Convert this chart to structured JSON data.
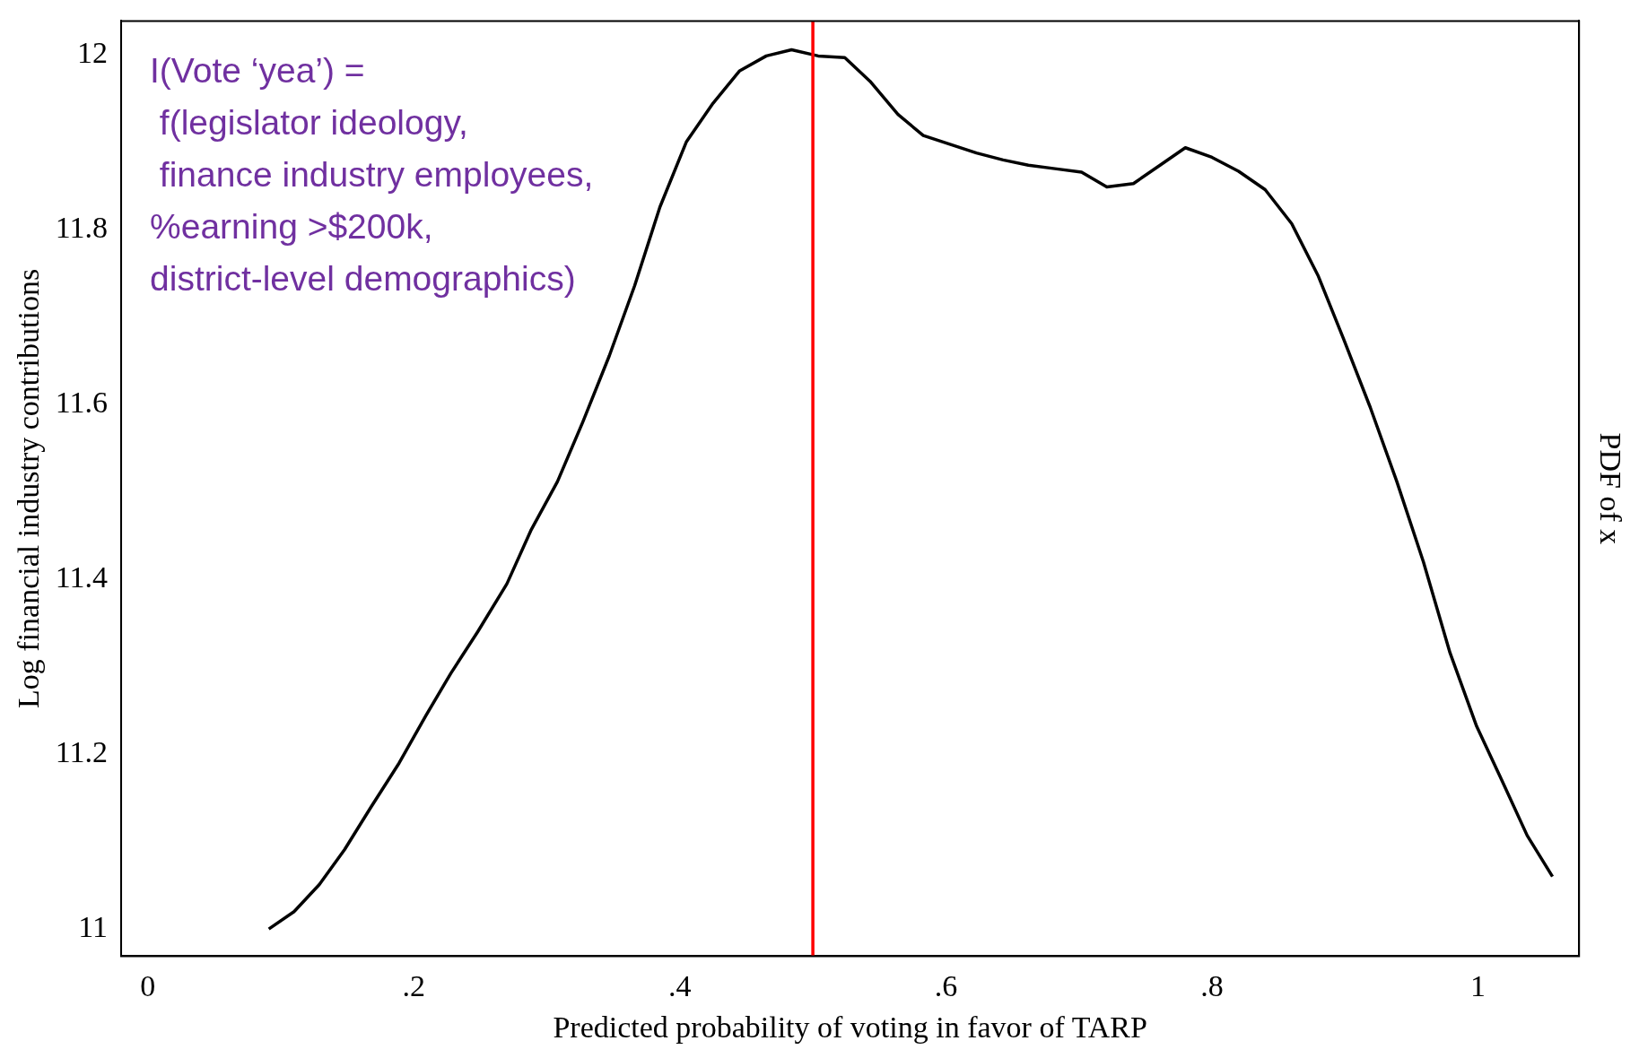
{
  "chart_data": {
    "type": "line",
    "xlabel": "Predicted probability of voting in favor of TARP",
    "ylabel": "Log financial industry contributions",
    "y2label": "PDF of x",
    "x": [
      0.091,
      0.11,
      0.129,
      0.148,
      0.168,
      0.189,
      0.209,
      0.228,
      0.248,
      0.27,
      0.288,
      0.308,
      0.327,
      0.347,
      0.366,
      0.385,
      0.405,
      0.425,
      0.445,
      0.465,
      0.484,
      0.504,
      0.524,
      0.543,
      0.564,
      0.583,
      0.603,
      0.623,
      0.643,
      0.662,
      0.682,
      0.702,
      0.721,
      0.741,
      0.761,
      0.78,
      0.8,
      0.82,
      0.84,
      0.86,
      0.88,
      0.899,
      0.919,
      0.939,
      0.959,
      0.979,
      0.999,
      1.018,
      1.037,
      1.056
    ],
    "series": [
      {
        "color": "#000000",
        "values": [
          11.0,
          11.02,
          11.051,
          11.091,
          11.14,
          11.19,
          11.244,
          11.293,
          11.34,
          11.395,
          11.456,
          11.512,
          11.58,
          11.656,
          11.736,
          11.826,
          11.901,
          11.945,
          11.982,
          11.999,
          12.006,
          11.999,
          11.997,
          11.97,
          11.932,
          11.908,
          11.898,
          11.888,
          11.88,
          11.874,
          11.87,
          11.866,
          11.849,
          11.853,
          11.874,
          11.894,
          11.883,
          11.867,
          11.846,
          11.807,
          11.747,
          11.675,
          11.597,
          11.512,
          11.42,
          11.316,
          11.232,
          11.17,
          11.107,
          11.06
        ]
      }
    ],
    "xlim": [
      -0.02,
      1.076
    ],
    "xticks": [
      0,
      {
        "value": 0.2,
        "label": ".2"
      },
      {
        "value": 0.4,
        "label": ".4"
      },
      {
        "value": 0.6,
        "label": ".6"
      },
      {
        "value": 0.8,
        "label": ".8"
      },
      1
    ],
    "ylim": [
      10.969,
      12.039
    ],
    "yticks": [
      11,
      11.2,
      11.4,
      11.6,
      11.8,
      12
    ],
    "ref_lines": [
      {
        "axis": "x",
        "value": 0.5,
        "color": "#ff0000"
      }
    ],
    "annotations": [
      "I(Vote ‘yea’) =\n f(legislator ideology,\n finance industry employees,\n%earning >$200k,\ndistrict-level demographics)"
    ],
    "grid": false,
    "legend": false,
    "marker": "none",
    "line_style": "solid"
  }
}
